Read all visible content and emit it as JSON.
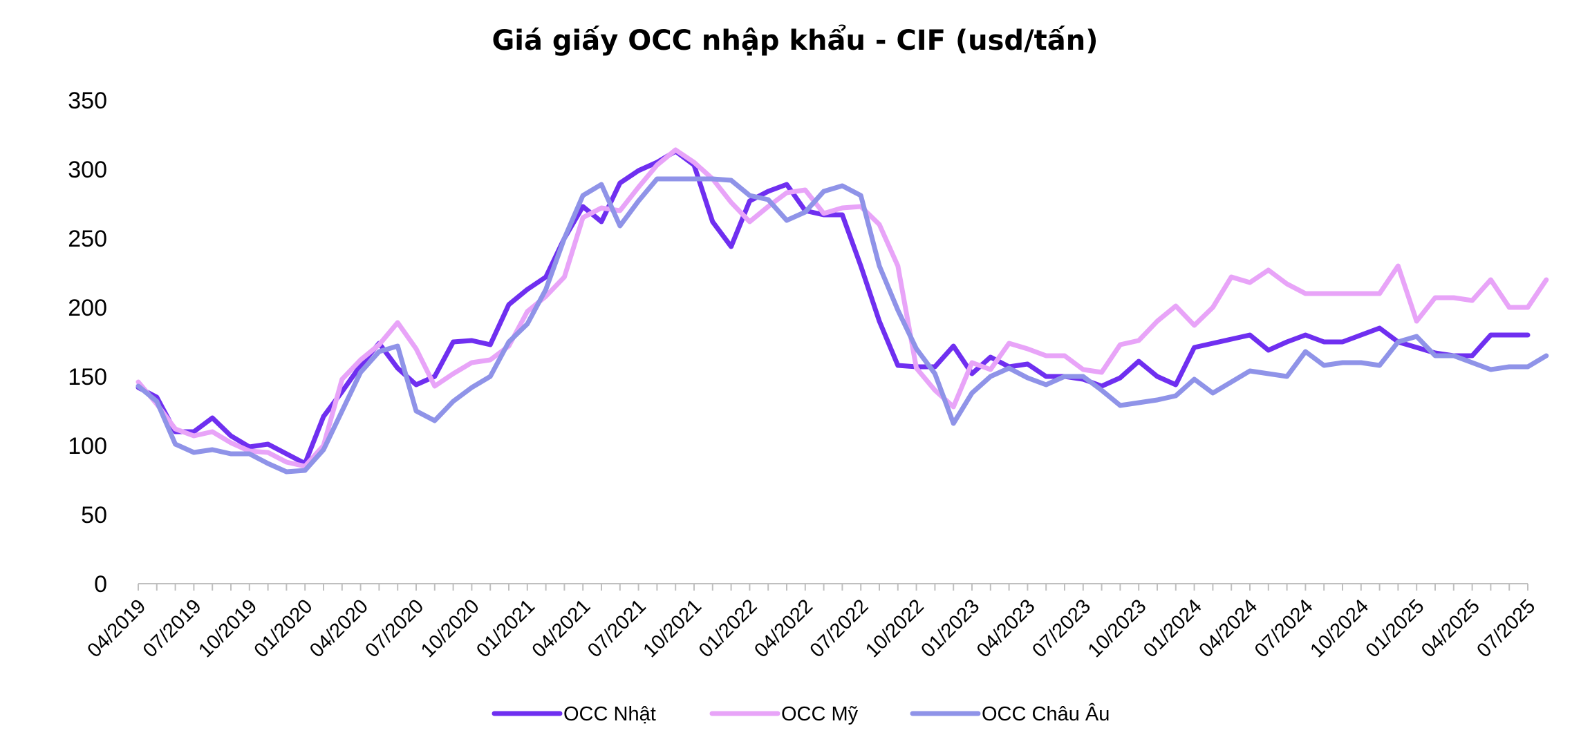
{
  "chart_data": {
    "type": "line",
    "title": "Giá giấy OCC nhập khẩu - CIF (usd/tấn)",
    "xlabel": "",
    "ylabel": "",
    "ylim": [
      0,
      350
    ],
    "yticks": [
      0,
      50,
      100,
      150,
      200,
      250,
      300,
      350
    ],
    "grid": false,
    "legend_position": "bottom",
    "x_tick_labels": [
      "04/2019",
      "07/2019",
      "10/2019",
      "01/2020",
      "04/2020",
      "07/2020",
      "10/2020",
      "01/2021",
      "04/2021",
      "07/2021",
      "10/2021",
      "01/2022",
      "04/2022",
      "07/2022",
      "10/2022",
      "01/2023",
      "04/2023",
      "07/2023",
      "10/2023",
      "01/2024",
      "04/2024",
      "07/2024",
      "10/2024",
      "01/2025",
      "04/2025",
      "07/2025"
    ],
    "series": [
      {
        "name": "OCC Nhật",
        "color": "#6f2ff0",
        "values": [
          142,
          135,
          110,
          110,
          120,
          107,
          99,
          101,
          94,
          87,
          121,
          139,
          158,
          174,
          156,
          144,
          150,
          175,
          176,
          173,
          202,
          213,
          222,
          250,
          273,
          262,
          290,
          299,
          305,
          313,
          303,
          262,
          244,
          277,
          284,
          289,
          270,
          267,
          267,
          230,
          190,
          158,
          157,
          157,
          172,
          152,
          164,
          157,
          159,
          150,
          150,
          148,
          143,
          149,
          161,
          150,
          144,
          171,
          174,
          177,
          180,
          169,
          175,
          180,
          175,
          175,
          180,
          185,
          175,
          171,
          167,
          165,
          165,
          180,
          180,
          180
        ]
      },
      {
        "name": "OCC Mỹ",
        "color": "#e8a4f8",
        "values": [
          146,
          130,
          112,
          107,
          110,
          102,
          96,
          95,
          88,
          85,
          100,
          148,
          162,
          173,
          189,
          170,
          143,
          152,
          160,
          162,
          172,
          197,
          208,
          222,
          265,
          272,
          270,
          287,
          303,
          314,
          305,
          293,
          276,
          262,
          273,
          283,
          285,
          268,
          272,
          273,
          260,
          230,
          156,
          140,
          128,
          160,
          155,
          174,
          170,
          165,
          165,
          155,
          153,
          173,
          176,
          190,
          201,
          187,
          200,
          222,
          218,
          227,
          217,
          210,
          210,
          210,
          210,
          210,
          230,
          190,
          207,
          207,
          205,
          220,
          200,
          200,
          220
        ]
      },
      {
        "name": "OCC Châu Âu",
        "color": "#8f93e8",
        "values": [
          143,
          132,
          101,
          95,
          97,
          94,
          94,
          87,
          81,
          82,
          97,
          125,
          153,
          168,
          172,
          125,
          118,
          132,
          142,
          150,
          175,
          188,
          213,
          250,
          281,
          289,
          259,
          277,
          293,
          293,
          293,
          293,
          292,
          281,
          278,
          263,
          269,
          284,
          288,
          281,
          230,
          198,
          170,
          152,
          116,
          138,
          150,
          156,
          149,
          144,
          150,
          150,
          140,
          129,
          131,
          133,
          136,
          148,
          138,
          146,
          154,
          152,
          150,
          168,
          158,
          160,
          160,
          158,
          175,
          179,
          165,
          165,
          160,
          155,
          157,
          157,
          165
        ]
      }
    ]
  }
}
